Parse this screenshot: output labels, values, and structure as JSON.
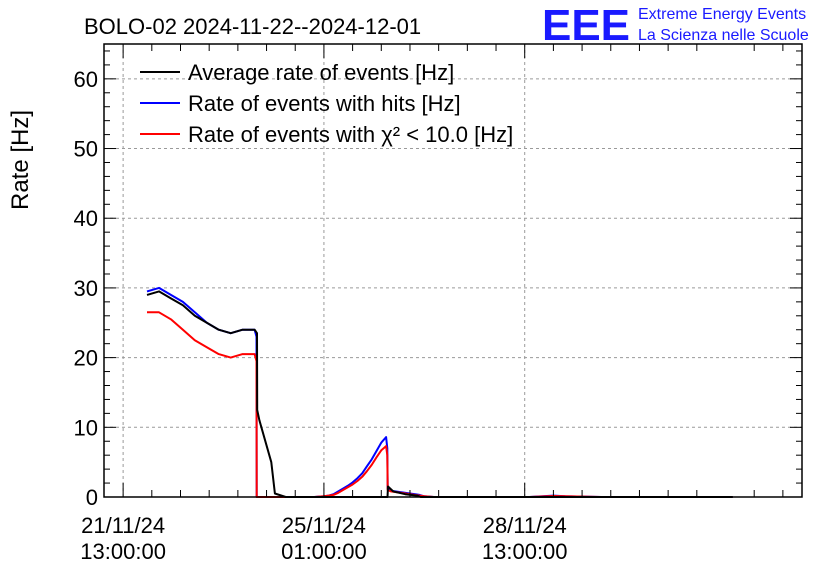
{
  "chart_data": {
    "type": "line",
    "title": "BOLO-02 2024-11-22--2024-12-01",
    "ylabel": "Rate [Hz]",
    "xlabel": "",
    "ylim": [
      0,
      65
    ],
    "yticks": [
      0,
      10,
      20,
      30,
      40,
      50,
      60
    ],
    "x_unit": "hours since 21/11/24 13:00:00",
    "xlim": [
      -8,
      284
    ],
    "xticks": [
      {
        "x": 0,
        "label_line1": "21/11/24",
        "label_line2": "13:00:00"
      },
      {
        "x": 84,
        "label_line1": "25/11/24",
        "label_line2": "01:00:00"
      },
      {
        "x": 168,
        "label_line1": "28/11/24",
        "label_line2": "13:00:00"
      }
    ],
    "grid": true,
    "legend_position": "top-left",
    "series": [
      {
        "name": "Average rate of events [Hz]",
        "color": "#000000",
        "x": [
          10,
          15,
          20,
          25,
          30,
          35,
          40,
          45,
          50,
          55,
          56,
          56.1,
          57,
          62,
          63.5,
          68,
          75,
          80,
          84,
          88,
          92,
          96,
          100,
          104,
          108,
          110,
          110.6,
          110.8,
          113,
          118,
          123,
          124.5,
          130,
          150,
          160,
          170,
          180,
          200,
          220,
          240,
          255
        ],
        "y": [
          29,
          29.5,
          28.5,
          27.5,
          26,
          25,
          24,
          23.5,
          24,
          24,
          23.5,
          12.5,
          11,
          5,
          0.5,
          0,
          0,
          0,
          0,
          0,
          0,
          0,
          0,
          0,
          0,
          0,
          0,
          1.5,
          0.8,
          0.4,
          0.2,
          0,
          0,
          0,
          0,
          0,
          0,
          0,
          0,
          0,
          0
        ]
      },
      {
        "name": "Rate of events with hits [Hz]",
        "color": "#0000ff",
        "x": [
          10,
          15,
          20,
          25,
          30,
          35,
          40,
          45,
          50,
          55,
          55.8,
          55.9,
          60,
          70,
          80,
          84,
          86,
          88,
          90,
          92,
          94,
          96,
          98,
          100,
          102,
          104,
          106,
          108,
          110,
          110.5,
          110.7,
          112,
          116,
          120,
          124,
          126,
          130,
          150,
          170,
          180,
          185,
          200,
          220,
          240,
          255
        ],
        "y": [
          29.5,
          30,
          29,
          28,
          26.5,
          25,
          24,
          23.5,
          24,
          24,
          23,
          0,
          0,
          0,
          0,
          0.1,
          0.2,
          0.4,
          0.8,
          1.2,
          1.6,
          2.1,
          2.7,
          3.4,
          4.4,
          5.4,
          6.6,
          7.8,
          8.6,
          7,
          1.2,
          0.9,
          0.7,
          0.5,
          0.3,
          0.1,
          0,
          0,
          0,
          0.2,
          0.1,
          0,
          0,
          0,
          0
        ]
      },
      {
        "name": "Rate of events with χ² < 10.0 [Hz]",
        "color": "#ff0000",
        "x": [
          10,
          15,
          20,
          25,
          30,
          35,
          40,
          45,
          50,
          55,
          55.8,
          55.9,
          60,
          70,
          80,
          84,
          86,
          88,
          90,
          92,
          94,
          96,
          98,
          100,
          102,
          104,
          106,
          108,
          110,
          110.5,
          110.7,
          112,
          116,
          120,
          124,
          126,
          130,
          150,
          170,
          180,
          185,
          200,
          220,
          240,
          255
        ],
        "y": [
          26.5,
          26.5,
          25.5,
          24,
          22.5,
          21.5,
          20.5,
          20,
          20.5,
          20.5,
          19.5,
          0,
          0,
          0,
          0,
          0.1,
          0.2,
          0.3,
          0.6,
          1,
          1.4,
          1.8,
          2.3,
          2.9,
          3.7,
          4.6,
          5.7,
          6.7,
          7.3,
          6,
          1,
          0.8,
          0.6,
          0.4,
          0.2,
          0.1,
          0,
          0,
          0,
          0.15,
          0.1,
          0,
          0,
          0,
          0
        ]
      }
    ]
  },
  "logo": {
    "mark": "EEE",
    "line1": "Extreme Energy Events",
    "line2": "La Scienza nelle Scuole",
    "color": "#1a1aff"
  }
}
